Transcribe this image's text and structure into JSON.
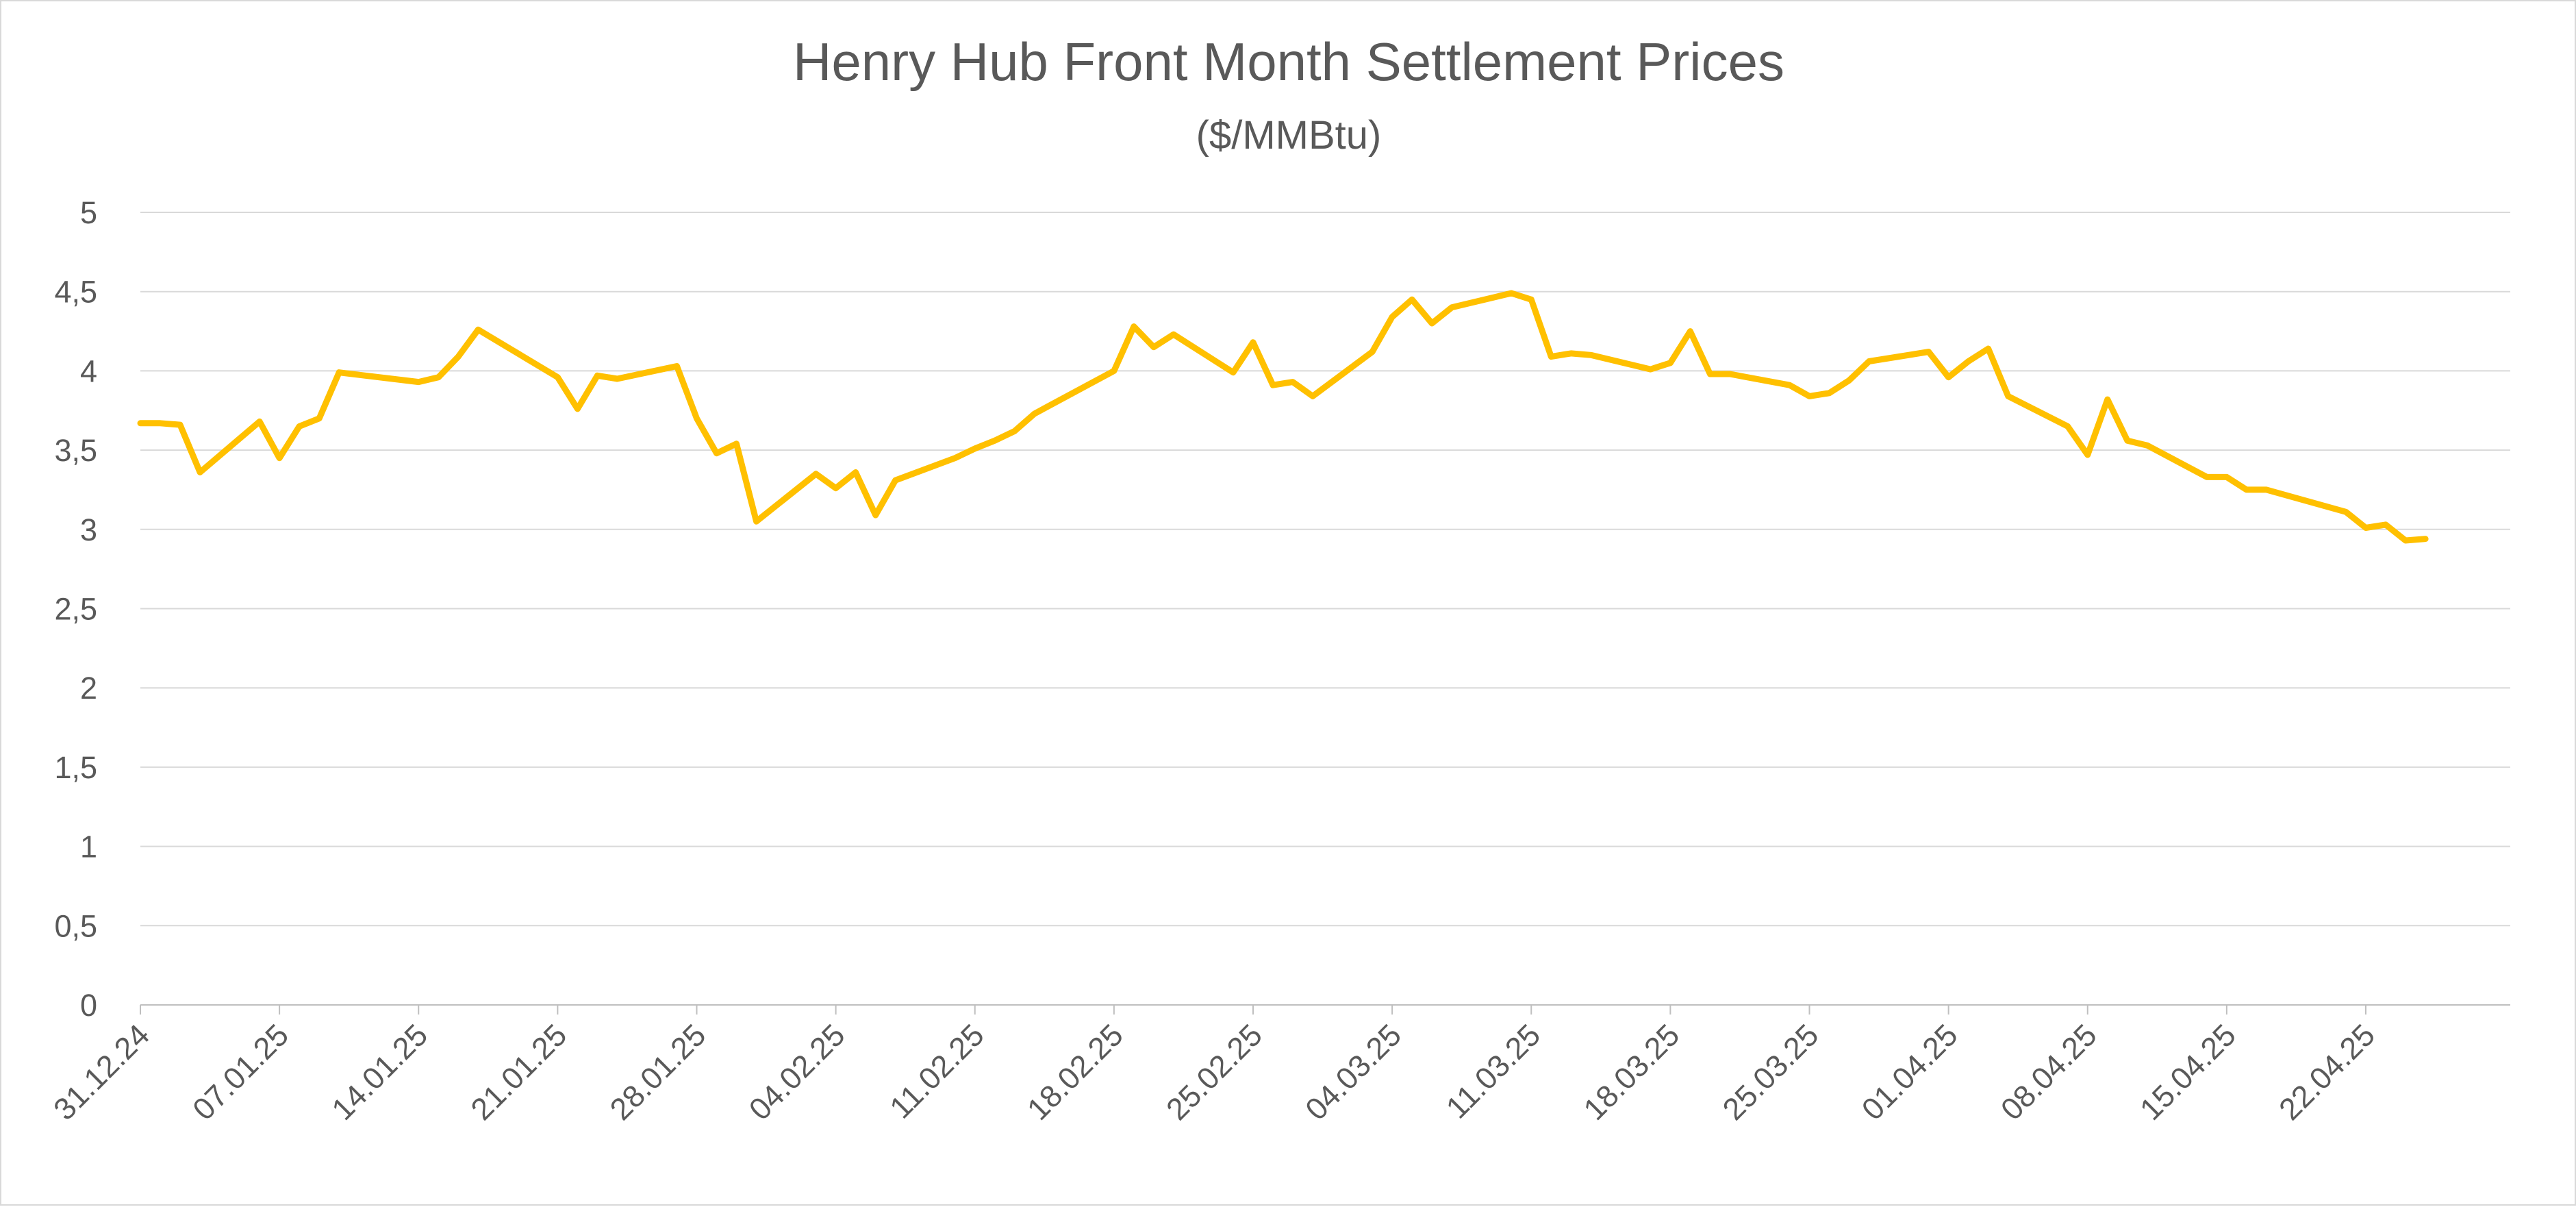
{
  "chart_data": {
    "type": "line",
    "title": "Henry Hub Front Month Settlement Prices",
    "subtitle": "($/MMBtu)",
    "ylim": [
      0,
      5
    ],
    "y_ticks": [
      "0",
      "0,5",
      "1",
      "1,5",
      "2",
      "2,5",
      "3",
      "3,5",
      "4",
      "4,5",
      "5"
    ],
    "x_ticks": [
      "31.12.24",
      "07.01.25",
      "14.01.25",
      "21.01.25",
      "28.01.25",
      "04.02.25",
      "11.02.25",
      "18.02.25",
      "25.02.25",
      "04.03.25",
      "11.03.25",
      "18.03.25",
      "25.03.25",
      "01.04.25",
      "08.04.25",
      "15.04.25",
      "22.04.25"
    ],
    "grid": true,
    "legend": "none",
    "line_color": "#FFC000",
    "series": [
      {
        "x": [
          "2024-12-31",
          "2025-01-01",
          "2025-01-02",
          "2025-01-03",
          "2025-01-06",
          "2025-01-07",
          "2025-01-08",
          "2025-01-09",
          "2025-01-10",
          "2025-01-14",
          "2025-01-15",
          "2025-01-16",
          "2025-01-17",
          "2025-01-21",
          "2025-01-22",
          "2025-01-23",
          "2025-01-24",
          "2025-01-27",
          "2025-01-28",
          "2025-01-29",
          "2025-01-30",
          "2025-01-31",
          "2025-02-03",
          "2025-02-04",
          "2025-02-05",
          "2025-02-06",
          "2025-02-07",
          "2025-02-10",
          "2025-02-11",
          "2025-02-12",
          "2025-02-13",
          "2025-02-14",
          "2025-02-18",
          "2025-02-19",
          "2025-02-20",
          "2025-02-21",
          "2025-02-24",
          "2025-02-25",
          "2025-02-26",
          "2025-02-27",
          "2025-02-28",
          "2025-03-03",
          "2025-03-04",
          "2025-03-05",
          "2025-03-06",
          "2025-03-07",
          "2025-03-10",
          "2025-03-11",
          "2025-03-12",
          "2025-03-13",
          "2025-03-14",
          "2025-03-17",
          "2025-03-18",
          "2025-03-19",
          "2025-03-20",
          "2025-03-21",
          "2025-03-24",
          "2025-03-25",
          "2025-03-26",
          "2025-03-27",
          "2025-03-28",
          "2025-03-31",
          "2025-04-01",
          "2025-04-02",
          "2025-04-03",
          "2025-04-04",
          "2025-04-07",
          "2025-04-08",
          "2025-04-09",
          "2025-04-10",
          "2025-04-11",
          "2025-04-14",
          "2025-04-15",
          "2025-04-16",
          "2025-04-17",
          "2025-04-21",
          "2025-04-22",
          "2025-04-23",
          "2025-04-24",
          "2025-04-25"
        ],
        "y": [
          3.67,
          3.67,
          3.66,
          3.36,
          3.68,
          3.45,
          3.65,
          3.7,
          3.99,
          3.93,
          3.96,
          4.09,
          4.26,
          3.96,
          3.76,
          3.97,
          3.95,
          4.03,
          3.7,
          3.48,
          3.54,
          3.05,
          3.35,
          3.26,
          3.36,
          3.09,
          3.31,
          3.45,
          3.51,
          3.56,
          3.62,
          3.73,
          4.0,
          4.28,
          4.15,
          4.23,
          3.99,
          4.18,
          3.91,
          3.93,
          3.84,
          4.12,
          4.34,
          4.45,
          4.3,
          4.4,
          4.49,
          4.45,
          4.09,
          4.11,
          4.1,
          4.01,
          4.05,
          4.25,
          3.98,
          3.98,
          3.91,
          3.84,
          3.86,
          3.94,
          4.06,
          4.12,
          3.96,
          4.06,
          4.14,
          3.84,
          3.65,
          3.47,
          3.82,
          3.56,
          3.53,
          3.33,
          3.33,
          3.25,
          3.25,
          3.11,
          3.01,
          3.03,
          2.93,
          2.94
        ]
      }
    ]
  }
}
